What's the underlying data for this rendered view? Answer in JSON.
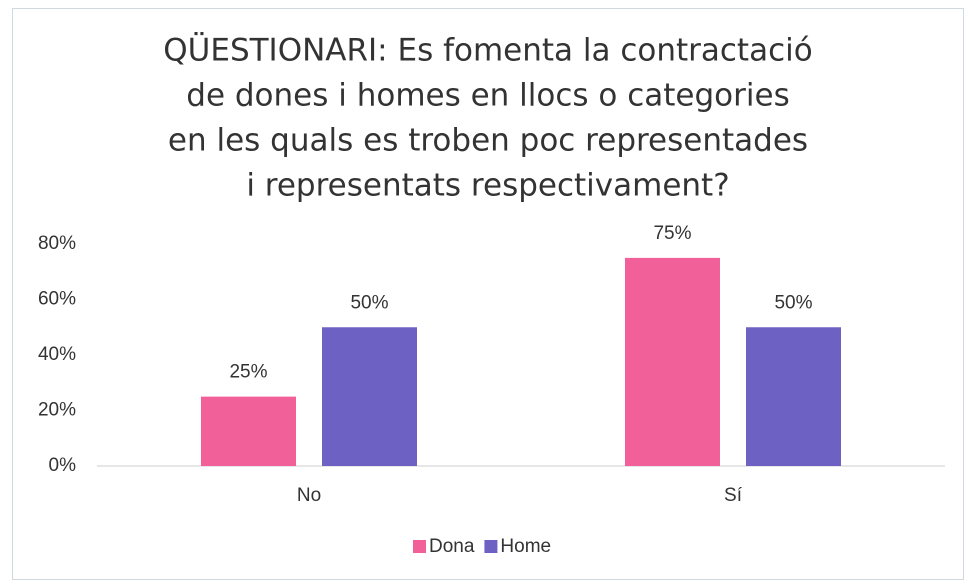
{
  "chart_data": {
    "type": "bar",
    "title": [
      "QÜESTIONARI: Es fomenta la contractació",
      "de dones i homes en llocs o categories",
      "en les quals es troben poc representades",
      "i representats respectivament?"
    ],
    "categories": [
      "No",
      "Sí"
    ],
    "series": [
      {
        "name": "Dona",
        "color": "#f2609a",
        "values": [
          25,
          75
        ],
        "value_labels": [
          "25%",
          "75%"
        ]
      },
      {
        "name": "Home",
        "color": "#6d62c4",
        "values": [
          50,
          50
        ],
        "value_labels": [
          "50%",
          "50%"
        ]
      }
    ],
    "ylim": [
      0,
      80
    ],
    "yticks": [
      {
        "value": 0,
        "label": "0%"
      },
      {
        "value": 20,
        "label": "20%"
      },
      {
        "value": 40,
        "label": "40%"
      },
      {
        "value": 60,
        "label": "60%"
      },
      {
        "value": 80,
        "label": "80%"
      }
    ],
    "grid": false,
    "legend": "bottom"
  }
}
